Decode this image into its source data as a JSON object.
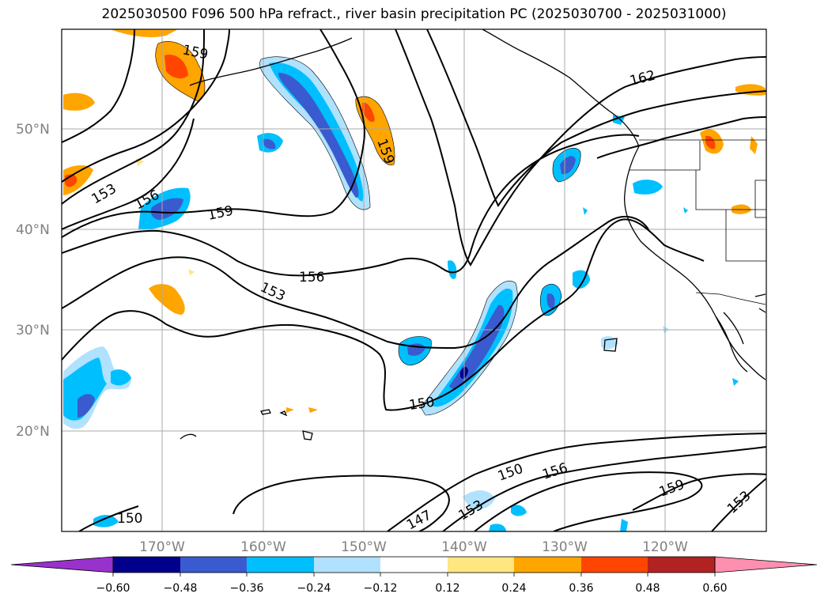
{
  "title": "2025030500 F096 500 hPa refract., river basin precipitation PC (2025030700 - 2025031000)",
  "map": {
    "lat_labels": [
      "50°N",
      "40°N",
      "30°N",
      "20°N"
    ],
    "lon_labels": [
      "170°W",
      "160°W",
      "150°W",
      "140°W",
      "130°W",
      "120°W"
    ],
    "contour_labels": [
      "159",
      "162",
      "153",
      "156",
      "159",
      "159",
      "156",
      "153",
      "150",
      "150",
      "147",
      "153",
      "150",
      "156",
      "159",
      "153"
    ]
  },
  "colorbar": {
    "ticks": [
      "−0.60",
      "−0.48",
      "−0.36",
      "−0.24",
      "−0.12",
      "0.12",
      "0.24",
      "0.36",
      "0.48",
      "0.60"
    ],
    "colors": [
      "#9932cc",
      "#00008b",
      "#3a5bcf",
      "#00bfff",
      "#b0e2ff",
      "#ffffff",
      "#ffe680",
      "#ffa500",
      "#ff4500",
      "#b22222",
      "#ff8fb0"
    ]
  },
  "chart_data": {
    "type": "heatmap",
    "title": "2025030500 F096 500 hPa refract., river basin precipitation PC (2025030700 - 2025031000)",
    "x_axis": {
      "label": "",
      "ticks": [
        "170°W",
        "160°W",
        "150°W",
        "140°W",
        "130°W",
        "120°W"
      ]
    },
    "y_axis": {
      "label": "",
      "ticks": [
        "20°N",
        "30°N",
        "40°N",
        "50°N"
      ]
    },
    "contour_values": [
      147,
      150,
      153,
      156,
      159,
      162
    ],
    "colorbar_levels": [
      -0.6,
      -0.48,
      -0.36,
      -0.24,
      -0.12,
      0.12,
      0.24,
      0.36,
      0.48,
      0.6
    ],
    "colorbar_extend": "both",
    "grid": true
  }
}
